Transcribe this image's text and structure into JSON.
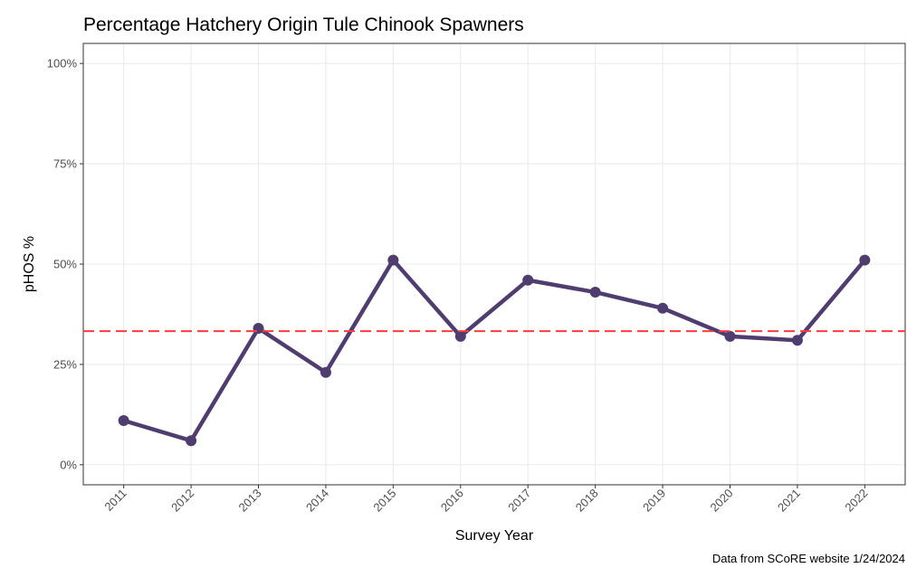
{
  "chart_data": {
    "type": "line",
    "title": "Percentage Hatchery Origin Tule Chinook Spawners",
    "x_label": "Survey Year",
    "y_label": "pHOS %",
    "caption": "Data from SCoRE website 1/24/2024",
    "categories": [
      "2011",
      "2012",
      "2013",
      "2014",
      "2015",
      "2016",
      "2017",
      "2018",
      "2019",
      "2020",
      "2021",
      "2022"
    ],
    "series": [
      {
        "name": "pHOS",
        "color": "#4e3d6e",
        "values": [
          11,
          6,
          34,
          23,
          51,
          32,
          46,
          43,
          39,
          32,
          31,
          51
        ]
      }
    ],
    "reference_line": {
      "value": 33.3,
      "color": "#ff3b3b"
    },
    "ylim": [
      -5,
      105
    ],
    "yticks": [
      {
        "value": 0,
        "label": "0%"
      },
      {
        "value": 25,
        "label": "25%"
      },
      {
        "value": 50,
        "label": "50%"
      },
      {
        "value": 75,
        "label": "75%"
      },
      {
        "value": 100,
        "label": "100%"
      }
    ],
    "grid": true
  }
}
